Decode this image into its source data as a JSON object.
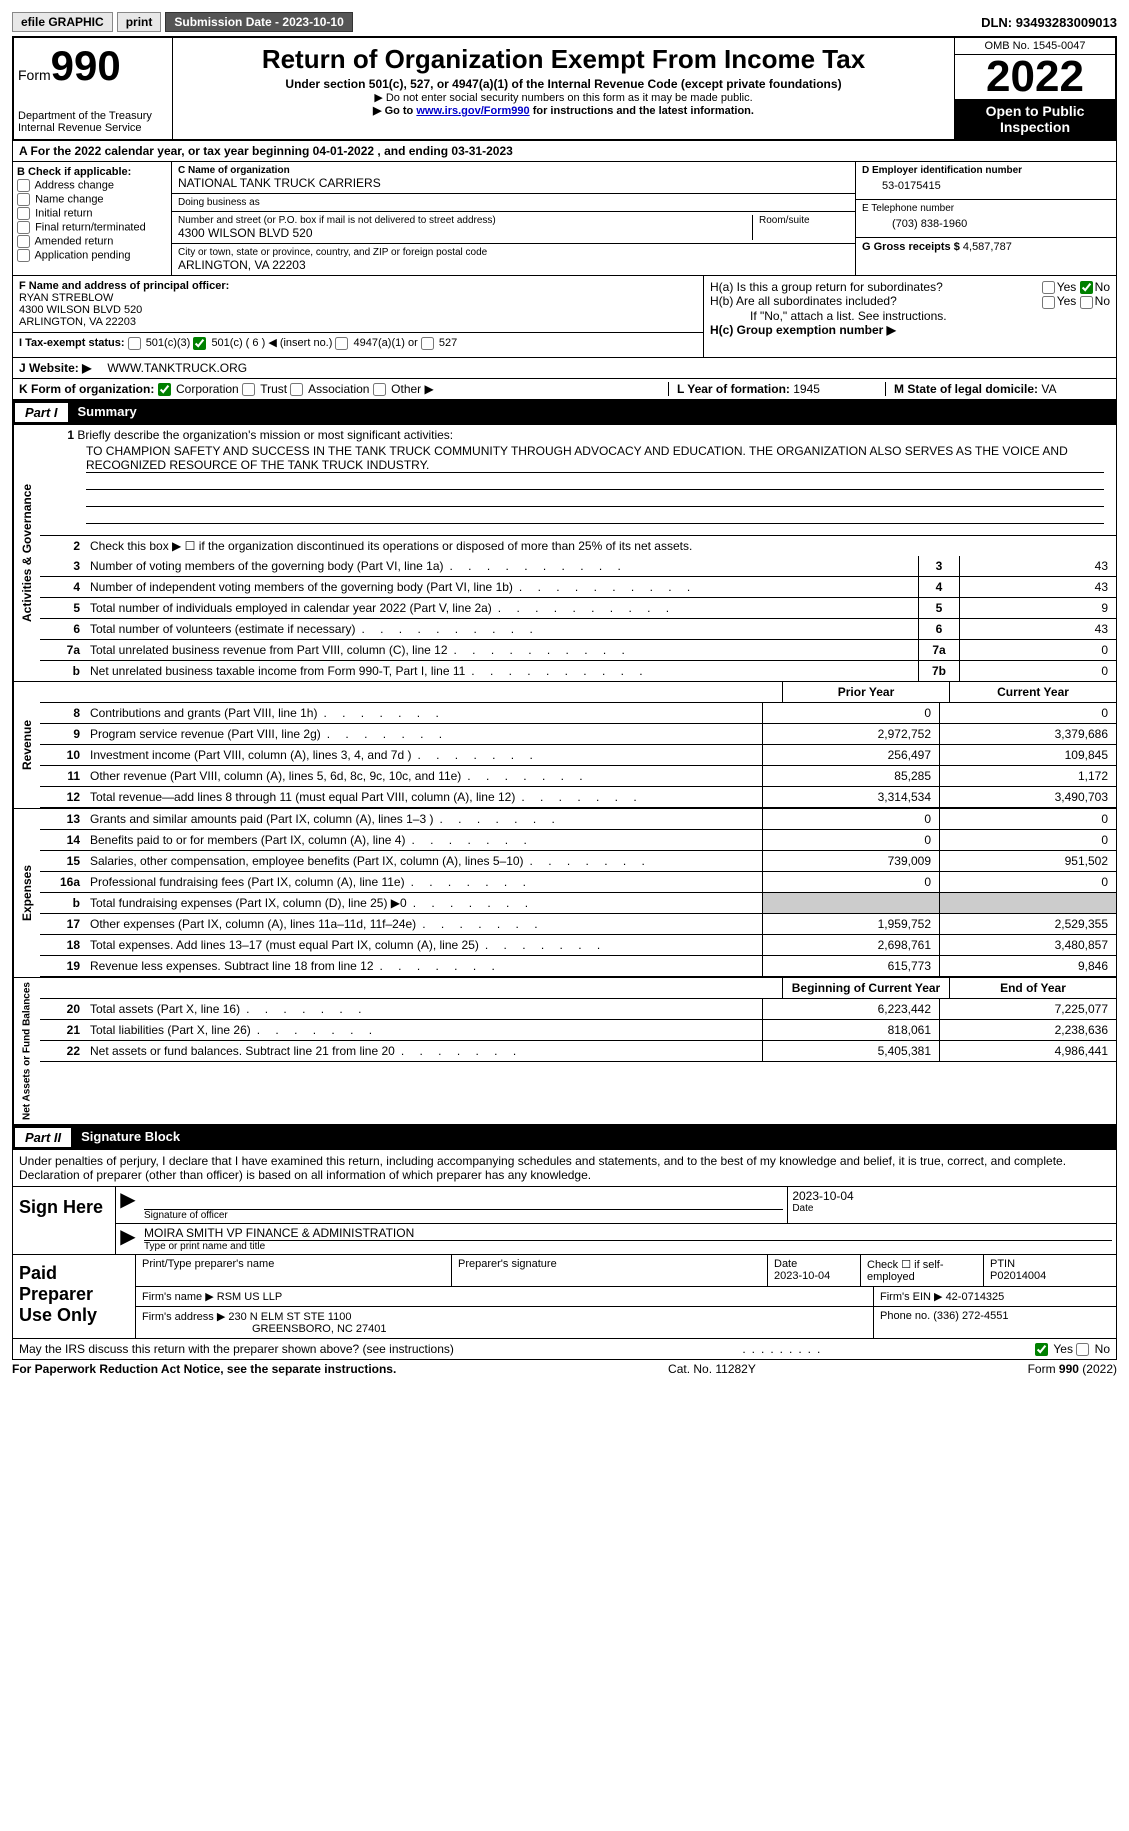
{
  "topbar": {
    "efile": "efile GRAPHIC",
    "print": "print",
    "subdate_label": "Submission Date - ",
    "subdate": "2023-10-10",
    "dln_label": "DLN: ",
    "dln": "93493283009013"
  },
  "header": {
    "form_prefix": "Form",
    "form_no": "990",
    "dept": "Department of the Treasury\nInternal Revenue Service",
    "title": "Return of Organization Exempt From Income Tax",
    "subtitle": "Under section 501(c), 527, or 4947(a)(1) of the Internal Revenue Code (except private foundations)",
    "note1": "▶ Do not enter social security numbers on this form as it may be made public.",
    "note2_pre": "▶ Go to ",
    "note2_link": "www.irs.gov/Form990",
    "note2_post": " for instructions and the latest information.",
    "omb": "OMB No. 1545-0047",
    "year": "2022",
    "open": "Open to Public Inspection"
  },
  "A": {
    "text_pre": "A For the 2022 calendar year, or tax year beginning ",
    "begin": "04-01-2022",
    "mid": "  , and ending ",
    "end": "03-31-2023"
  },
  "B": {
    "label": "B Check if applicable:",
    "opts": [
      "Address change",
      "Name change",
      "Initial return",
      "Final return/terminated",
      "Amended return",
      "Application pending"
    ]
  },
  "C": {
    "name_label": "C Name of organization",
    "name": "NATIONAL TANK TRUCK CARRIERS",
    "dba_label": "Doing business as",
    "dba": "",
    "street_label": "Number and street (or P.O. box if mail is not delivered to street address)",
    "room_label": "Room/suite",
    "street": "4300 WILSON BLVD 520",
    "city_label": "City or town, state or province, country, and ZIP or foreign postal code",
    "city": "ARLINGTON, VA  22203"
  },
  "D": {
    "label": "D Employer identification number",
    "value": "53-0175415"
  },
  "E": {
    "label": "E Telephone number",
    "value": "(703) 838-1960"
  },
  "G": {
    "label": "G Gross receipts $ ",
    "value": "4,587,787"
  },
  "F": {
    "label": "F  Name and address of principal officer:",
    "name": "RYAN STREBLOW",
    "addr1": "4300 WILSON BLVD 520",
    "addr2": "ARLINGTON, VA  22203"
  },
  "H": {
    "a_label": "H(a)  Is this a group return for subordinates?",
    "a_yes": "Yes",
    "a_no": "No",
    "b_label": "H(b)  Are all subordinates included?",
    "b_note": "If \"No,\" attach a list. See instructions.",
    "c_label": "H(c)  Group exemption number ▶"
  },
  "I": {
    "label": "I    Tax-exempt status:",
    "o1": "501(c)(3)",
    "o2": "501(c) (",
    "o2n": "6",
    "o2p": ") ◀ (insert no.)",
    "o3": "4947(a)(1) or",
    "o4": "527"
  },
  "J": {
    "label": "J   Website: ▶",
    "value": "WWW.TANKTRUCK.ORG"
  },
  "K": {
    "label": "K Form of organization:",
    "corp": "Corporation",
    "trust": "Trust",
    "assoc": "Association",
    "other": "Other ▶"
  },
  "L": {
    "label": "L Year of formation: ",
    "value": "1945"
  },
  "M": {
    "label": "M State of legal domicile: ",
    "value": "VA"
  },
  "partI": {
    "label": "Part I",
    "title": "Summary"
  },
  "mission": {
    "num": "1",
    "label": "Briefly describe the organization's mission or most significant activities:",
    "text": "TO CHAMPION SAFETY AND SUCCESS IN THE TANK TRUCK COMMUNITY THROUGH ADVOCACY AND EDUCATION. THE ORGANIZATION ALSO SERVES AS THE VOICE AND RECOGNIZED RESOURCE OF THE TANK TRUCK INDUSTRY."
  },
  "line2": {
    "num": "2",
    "text": "Check this box ▶ ☐ if the organization discontinued its operations or disposed of more than 25% of its net assets."
  },
  "gov_rows": [
    {
      "n": "3",
      "d": "Number of voting members of the governing body (Part VI, line 1a)",
      "box": "3",
      "v": "43"
    },
    {
      "n": "4",
      "d": "Number of independent voting members of the governing body (Part VI, line 1b)",
      "box": "4",
      "v": "43"
    },
    {
      "n": "5",
      "d": "Total number of individuals employed in calendar year 2022 (Part V, line 2a)",
      "box": "5",
      "v": "9"
    },
    {
      "n": "6",
      "d": "Total number of volunteers (estimate if necessary)",
      "box": "6",
      "v": "43"
    },
    {
      "n": "7a",
      "d": "Total unrelated business revenue from Part VIII, column (C), line 12",
      "box": "7a",
      "v": "0"
    },
    {
      "n": "b",
      "d": "Net unrelated business taxable income from Form 990-T, Part I, line 11",
      "box": "7b",
      "v": "0"
    }
  ],
  "py_label": "Prior Year",
  "cy_label": "Current Year",
  "revenue_rows": [
    {
      "n": "8",
      "d": "Contributions and grants (Part VIII, line 1h)",
      "p": "0",
      "c": "0"
    },
    {
      "n": "9",
      "d": "Program service revenue (Part VIII, line 2g)",
      "p": "2,972,752",
      "c": "3,379,686"
    },
    {
      "n": "10",
      "d": "Investment income (Part VIII, column (A), lines 3, 4, and 7d )",
      "p": "256,497",
      "c": "109,845"
    },
    {
      "n": "11",
      "d": "Other revenue (Part VIII, column (A), lines 5, 6d, 8c, 9c, 10c, and 11e)",
      "p": "85,285",
      "c": "1,172"
    },
    {
      "n": "12",
      "d": "Total revenue—add lines 8 through 11 (must equal Part VIII, column (A), line 12)",
      "p": "3,314,534",
      "c": "3,490,703"
    }
  ],
  "expense_rows": [
    {
      "n": "13",
      "d": "Grants and similar amounts paid (Part IX, column (A), lines 1–3 )",
      "p": "0",
      "c": "0"
    },
    {
      "n": "14",
      "d": "Benefits paid to or for members (Part IX, column (A), line 4)",
      "p": "0",
      "c": "0"
    },
    {
      "n": "15",
      "d": "Salaries, other compensation, employee benefits (Part IX, column (A), lines 5–10)",
      "p": "739,009",
      "c": "951,502"
    },
    {
      "n": "16a",
      "d": "Professional fundraising fees (Part IX, column (A), line 11e)",
      "p": "0",
      "c": "0"
    },
    {
      "n": "b",
      "d": "Total fundraising expenses (Part IX, column (D), line 25) ▶0",
      "p": "GREY",
      "c": "GREY"
    },
    {
      "n": "17",
      "d": "Other expenses (Part IX, column (A), lines 11a–11d, 11f–24e)",
      "p": "1,959,752",
      "c": "2,529,355"
    },
    {
      "n": "18",
      "d": "Total expenses. Add lines 13–17 (must equal Part IX, column (A), line 25)",
      "p": "2,698,761",
      "c": "3,480,857"
    },
    {
      "n": "19",
      "d": "Revenue less expenses. Subtract line 18 from line 12",
      "p": "615,773",
      "c": "9,846"
    }
  ],
  "by_label": "Beginning of Current Year",
  "ey_label": "End of Year",
  "net_rows": [
    {
      "n": "20",
      "d": "Total assets (Part X, line 16)",
      "p": "6,223,442",
      "c": "7,225,077"
    },
    {
      "n": "21",
      "d": "Total liabilities (Part X, line 26)",
      "p": "818,061",
      "c": "2,238,636"
    },
    {
      "n": "22",
      "d": "Net assets or fund balances. Subtract line 21 from line 20",
      "p": "5,405,381",
      "c": "4,986,441"
    }
  ],
  "side_labels": {
    "gov": "Activities & Governance",
    "rev": "Revenue",
    "exp": "Expenses",
    "net": "Net Assets or Fund Balances"
  },
  "partII": {
    "label": "Part II",
    "title": "Signature Block"
  },
  "sig": {
    "decl": "Under penalties of perjury, I declare that I have examined this return, including accompanying schedules and statements, and to the best of my knowledge and belief, it is true, correct, and complete. Declaration of preparer (other than officer) is based on all information of which preparer has any knowledge.",
    "sign_here": "Sign Here",
    "sig_officer": "Signature of officer",
    "date": "Date",
    "date_val": "2023-10-04",
    "name_title": "MOIRA SMITH  VP FINANCE & ADMINISTRATION",
    "type_name": "Type or print name and title"
  },
  "paid": {
    "title": "Paid Preparer Use Only",
    "h1": "Print/Type preparer's name",
    "h2": "Preparer's signature",
    "h3_label": "Date",
    "h3_val": "2023-10-04",
    "h4_label": "Check ☐ if self-employed",
    "h5_label": "PTIN",
    "h5_val": "P02014004",
    "firm_label": "Firm's name    ▶",
    "firm": "RSM US LLP",
    "ein_label": "Firm's EIN ▶",
    "ein": "42-0714325",
    "addr_label": "Firm's address ▶",
    "addr1": "230 N ELM ST STE 1100",
    "addr2": "GREENSBORO, NC  27401",
    "phone_label": "Phone no. ",
    "phone": "(336) 272-4551"
  },
  "footer": {
    "q": "May the IRS discuss this return with the preparer shown above? (see instructions)",
    "yes": "Yes",
    "no": "No",
    "pra": "For Paperwork Reduction Act Notice, see the separate instructions.",
    "cat": "Cat. No. 11282Y",
    "form": "Form 990 (2022)"
  }
}
